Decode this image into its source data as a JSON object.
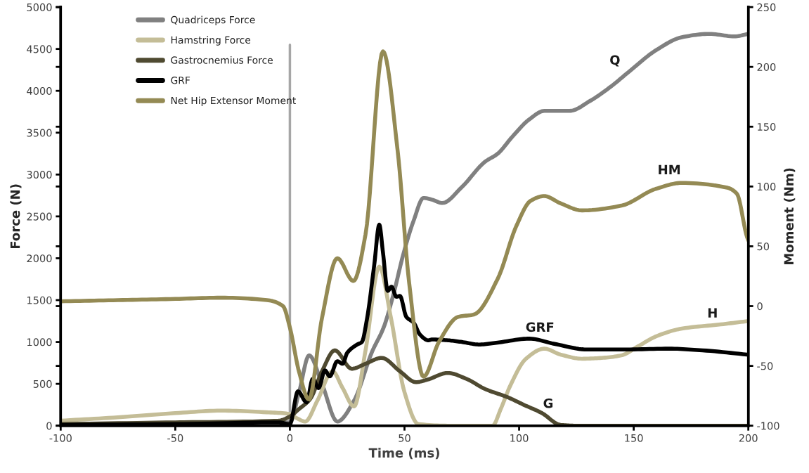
{
  "chart_data": {
    "type": "line",
    "xlabel": "Time (ms)",
    "ylabel": "Force (N)",
    "y2label": "Moment (Nm)",
    "xlim": [
      -100,
      200
    ],
    "xticks": [
      -100,
      -50,
      0,
      50,
      100,
      150,
      200
    ],
    "ylim": [
      0,
      5000
    ],
    "yticks": [
      0,
      500,
      1000,
      1500,
      2000,
      2500,
      3000,
      3500,
      4000,
      4500,
      5000
    ],
    "y2lim": [
      -100,
      250
    ],
    "y2ticks": [
      -100,
      -50,
      0,
      50,
      100,
      150,
      200,
      250
    ],
    "grid": false,
    "legend": "top left",
    "marker": "none",
    "line_style": "solid",
    "series": [
      {
        "name": "Quadriceps Force",
        "color": "#808080",
        "x": [
          -100,
          -50,
          -10,
          0,
          4,
          8.4,
          14,
          20.7,
          28,
          35.8,
          41,
          45,
          49.7,
          54,
          58.3,
          62,
          66.5,
          75,
          85,
          90.7,
          97,
          104.5,
          111,
          122,
          131,
          140,
          148,
          160,
          171,
          183,
          194,
          200
        ],
        "values": [
          20,
          30,
          40,
          40,
          400,
          840,
          500,
          50,
          300,
          880,
          1180,
          1550,
          2070,
          2450,
          2720,
          2700,
          2660,
          2850,
          3150,
          3250,
          3450,
          3660,
          3760,
          3760,
          3880,
          4050,
          4230,
          4490,
          4640,
          4680,
          4650,
          4680
        ]
      },
      {
        "name": "Hamstring Force",
        "color": "#c4bd97",
        "x": [
          -100,
          -75,
          -50,
          -30,
          -10,
          0,
          3,
          6.7,
          12,
          18.6,
          23,
          28,
          33,
          39,
          44,
          50,
          56,
          70,
          88.4,
          92,
          96,
          103,
          111,
          118,
          127.5,
          136,
          144.6,
          152,
          160,
          171,
          188,
          200
        ],
        "values": [
          60,
          100,
          150,
          180,
          160,
          140,
          90,
          50,
          300,
          650,
          450,
          230,
          900,
          1900,
          1300,
          400,
          20,
          0,
          0,
          200,
          470,
          800,
          920,
          850,
          800,
          810,
          840,
          950,
          1070,
          1160,
          1210,
          1250
        ]
      },
      {
        "name": "Gastrocnemius Force",
        "color": "#4f4a31",
        "x": [
          -100,
          -50,
          -5,
          0,
          4,
          8.9,
          14,
          19.6,
          27,
          33,
          40,
          48,
          55,
          60,
          68.8,
          77,
          85,
          95,
          102,
          110,
          118,
          125,
          150,
          200
        ],
        "values": [
          20,
          40,
          60,
          110,
          200,
          320,
          650,
          900,
          680,
          740,
          810,
          650,
          520,
          550,
          630,
          560,
          440,
          340,
          250,
          150,
          10,
          0,
          0,
          0
        ]
      },
      {
        "name": "GRF",
        "color": "#000000",
        "x": [
          -100,
          -50,
          -5,
          0,
          3.5,
          7.3,
          10,
          12.5,
          15.3,
          17.4,
          20.7,
          23,
          25,
          29.4,
          31.4,
          33.6,
          36.8,
          39,
          40.6,
          42.7,
          44.3,
          46.5,
          48,
          50.8,
          54,
          56.7,
          60.4,
          62,
          69,
          75,
          82.6,
          90,
          104.5,
          115,
          129.8,
          145,
          165.4,
          180,
          199.4
        ],
        "values": [
          10,
          20,
          40,
          20,
          410,
          280,
          560,
          450,
          660,
          590,
          770,
          740,
          870,
          970,
          1000,
          1270,
          1920,
          2400,
          2070,
          1610,
          1660,
          1540,
          1550,
          1300,
          1230,
          1090,
          1020,
          1030,
          1020,
          1000,
          970,
          990,
          1040,
          980,
          910,
          910,
          920,
          900,
          850
        ]
      },
      {
        "name": "Net Hip Extensor Moment",
        "color": "#948a54",
        "axis": "y2",
        "x": [
          -100,
          -75,
          -50,
          -30,
          -10,
          -3,
          0,
          4,
          8.3,
          14,
          20.7,
          27.7,
          33,
          40.6,
          47,
          52,
          58.3,
          65,
          73.4,
          80.3,
          90.7,
          98.8,
          105,
          111,
          118,
          127.5,
          144.6,
          159.6,
          171,
          190.8,
          195,
          199.4,
          200
        ],
        "values": [
          4,
          5,
          6,
          7,
          5,
          0,
          -18,
          -55,
          -78,
          -10,
          40,
          21,
          60,
          213,
          130,
          20,
          -59,
          -30,
          -9,
          -7,
          23,
          67,
          88,
          92,
          86,
          80,
          84,
          98,
          103,
          99,
          94,
          58,
          55
        ]
      }
    ],
    "ref_lines": [
      {
        "axis": "x",
        "value": 0,
        "label": null,
        "color": "#a6a6a6"
      }
    ],
    "annotations": [
      "Q",
      "HM",
      "H",
      "GRF",
      "G"
    ]
  }
}
